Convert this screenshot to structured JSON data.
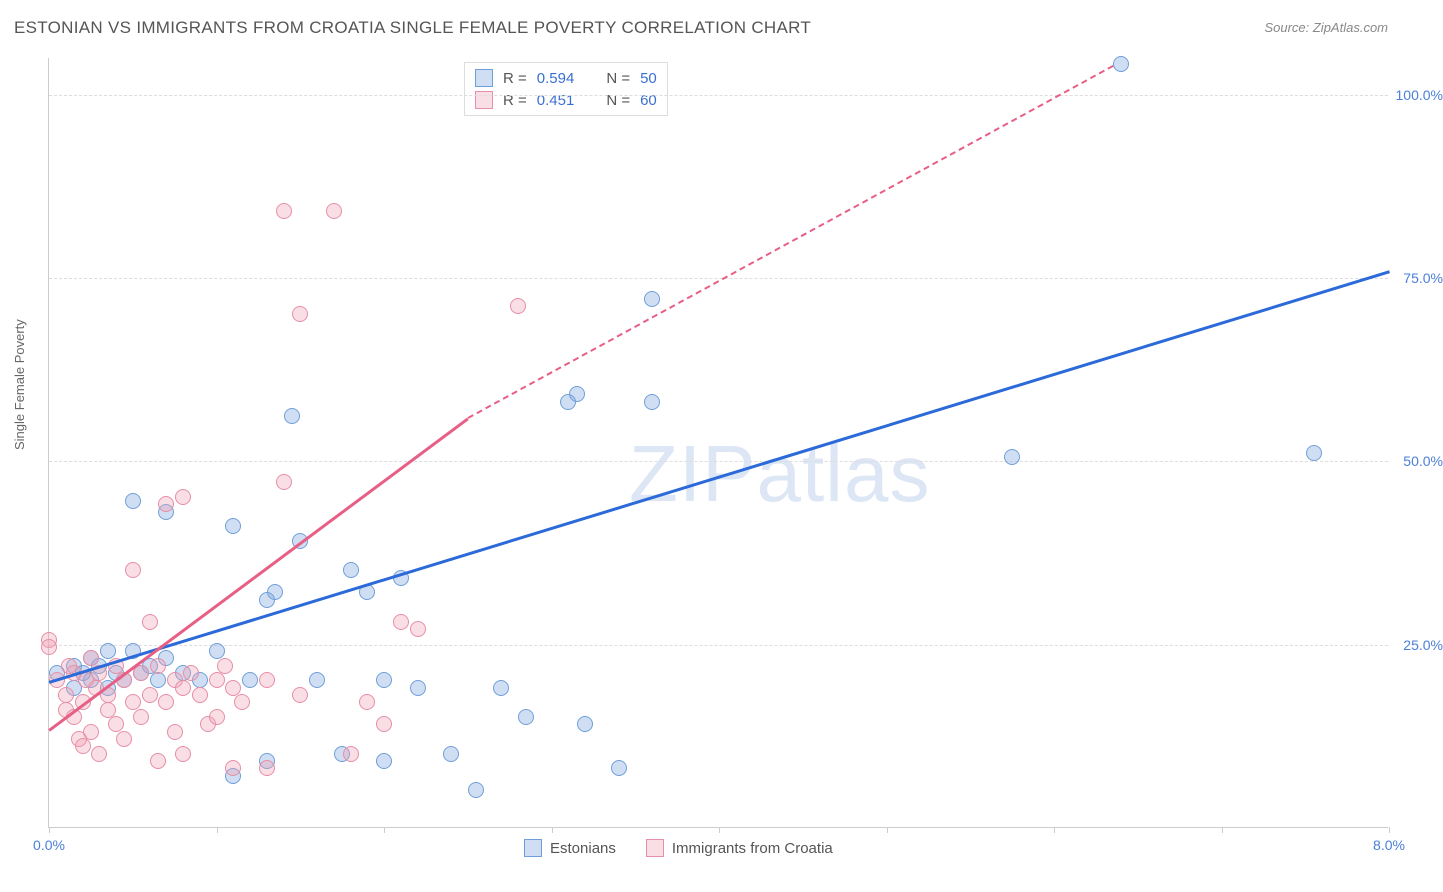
{
  "title": "ESTONIAN VS IMMIGRANTS FROM CROATIA SINGLE FEMALE POVERTY CORRELATION CHART",
  "source_label": "Source: ZipAtlas.com",
  "ylabel": "Single Female Poverty",
  "watermark": "ZIPatlas",
  "chart": {
    "type": "scatter",
    "xlim": [
      0,
      8
    ],
    "ylim": [
      0,
      105
    ],
    "x_ticks": [
      0,
      1,
      2,
      3,
      4,
      5,
      6,
      7,
      8
    ],
    "x_tick_labels": {
      "0": "0.0%",
      "8": "8.0%"
    },
    "y_ticks": [
      25,
      50,
      75,
      100
    ],
    "y_tick_labels": [
      "25.0%",
      "50.0%",
      "75.0%",
      "100.0%"
    ],
    "background_color": "#ffffff",
    "grid_color": "#dddddd",
    "axis_color": "#cccccc",
    "tick_label_color": "#4a7fd8",
    "marker_radius": 8,
    "series": [
      {
        "name": "Estonians",
        "fill": "rgba(120,160,220,0.35)",
        "stroke": "#6f9fd8",
        "trend_color": "#2b6ad8",
        "trend_solid": {
          "x1": 0.0,
          "y1": 20.0,
          "x2": 8.0,
          "y2": 76.0
        },
        "points": [
          [
            0.05,
            21
          ],
          [
            0.15,
            19
          ],
          [
            0.15,
            22
          ],
          [
            0.2,
            21
          ],
          [
            0.25,
            23
          ],
          [
            0.25,
            20
          ],
          [
            0.3,
            22
          ],
          [
            0.35,
            19
          ],
          [
            0.35,
            24
          ],
          [
            0.4,
            21
          ],
          [
            0.45,
            20
          ],
          [
            0.5,
            44.5
          ],
          [
            0.5,
            24
          ],
          [
            0.55,
            21
          ],
          [
            0.6,
            22
          ],
          [
            0.65,
            20
          ],
          [
            0.7,
            43
          ],
          [
            0.7,
            23
          ],
          [
            0.8,
            21
          ],
          [
            0.9,
            20
          ],
          [
            1.0,
            24
          ],
          [
            1.1,
            7
          ],
          [
            1.1,
            41
          ],
          [
            1.2,
            20
          ],
          [
            1.3,
            9
          ],
          [
            1.3,
            31
          ],
          [
            1.35,
            32
          ],
          [
            1.45,
            56
          ],
          [
            1.5,
            39
          ],
          [
            1.6,
            20
          ],
          [
            1.75,
            10
          ],
          [
            1.8,
            35
          ],
          [
            1.9,
            32
          ],
          [
            2.0,
            9
          ],
          [
            2.0,
            20
          ],
          [
            2.1,
            34
          ],
          [
            2.2,
            19
          ],
          [
            2.4,
            10
          ],
          [
            2.55,
            5
          ],
          [
            2.7,
            19
          ],
          [
            2.85,
            15
          ],
          [
            3.1,
            58
          ],
          [
            3.15,
            59
          ],
          [
            3.2,
            14
          ],
          [
            3.4,
            8
          ],
          [
            3.6,
            72
          ],
          [
            3.6,
            58
          ],
          [
            5.75,
            50.5
          ],
          [
            6.4,
            104
          ],
          [
            7.55,
            51
          ]
        ]
      },
      {
        "name": "Immigrants from Croatia",
        "fill": "rgba(240,160,180,0.35)",
        "stroke": "#e68fa6",
        "trend_color": "#e85f85",
        "trend_solid": {
          "x1": 0.0,
          "y1": 13.5,
          "x2": 2.5,
          "y2": 56.0
        },
        "trend_dashed": {
          "x1": 2.5,
          "y1": 56.0,
          "x2": 6.35,
          "y2": 104.0
        },
        "points": [
          [
            0.0,
            25.5
          ],
          [
            0.0,
            24.5
          ],
          [
            0.05,
            20
          ],
          [
            0.1,
            18
          ],
          [
            0.1,
            16
          ],
          [
            0.12,
            22
          ],
          [
            0.15,
            15
          ],
          [
            0.15,
            21
          ],
          [
            0.18,
            12
          ],
          [
            0.2,
            11
          ],
          [
            0.2,
            17
          ],
          [
            0.22,
            20
          ],
          [
            0.25,
            23
          ],
          [
            0.25,
            13
          ],
          [
            0.28,
            19
          ],
          [
            0.3,
            10
          ],
          [
            0.3,
            21
          ],
          [
            0.35,
            16
          ],
          [
            0.35,
            18
          ],
          [
            0.4,
            14
          ],
          [
            0.4,
            22
          ],
          [
            0.45,
            12
          ],
          [
            0.45,
            20
          ],
          [
            0.5,
            35
          ],
          [
            0.5,
            17
          ],
          [
            0.55,
            21
          ],
          [
            0.55,
            15
          ],
          [
            0.6,
            28
          ],
          [
            0.6,
            18
          ],
          [
            0.65,
            9
          ],
          [
            0.65,
            22
          ],
          [
            0.7,
            44
          ],
          [
            0.7,
            17
          ],
          [
            0.75,
            13
          ],
          [
            0.75,
            20
          ],
          [
            0.8,
            19
          ],
          [
            0.8,
            45
          ],
          [
            0.8,
            10
          ],
          [
            0.85,
            21
          ],
          [
            0.9,
            18
          ],
          [
            0.95,
            14
          ],
          [
            1.0,
            20
          ],
          [
            1.0,
            15
          ],
          [
            1.05,
            22
          ],
          [
            1.1,
            8
          ],
          [
            1.1,
            19
          ],
          [
            1.15,
            17
          ],
          [
            1.3,
            8
          ],
          [
            1.3,
            20
          ],
          [
            1.4,
            47
          ],
          [
            1.4,
            84
          ],
          [
            1.5,
            18
          ],
          [
            1.5,
            70
          ],
          [
            1.7,
            84
          ],
          [
            1.8,
            10
          ],
          [
            1.9,
            17
          ],
          [
            2.0,
            14
          ],
          [
            2.1,
            28
          ],
          [
            2.2,
            27
          ],
          [
            2.8,
            71
          ]
        ]
      }
    ]
  },
  "stats_legend": [
    {
      "series": 0,
      "R": "0.594",
      "N": "50"
    },
    {
      "series": 1,
      "R": "0.451",
      "N": "60"
    }
  ],
  "bottom_legend": [
    {
      "series": 0,
      "label": "Estonians"
    },
    {
      "series": 1,
      "label": "Immigrants from Croatia"
    }
  ]
}
